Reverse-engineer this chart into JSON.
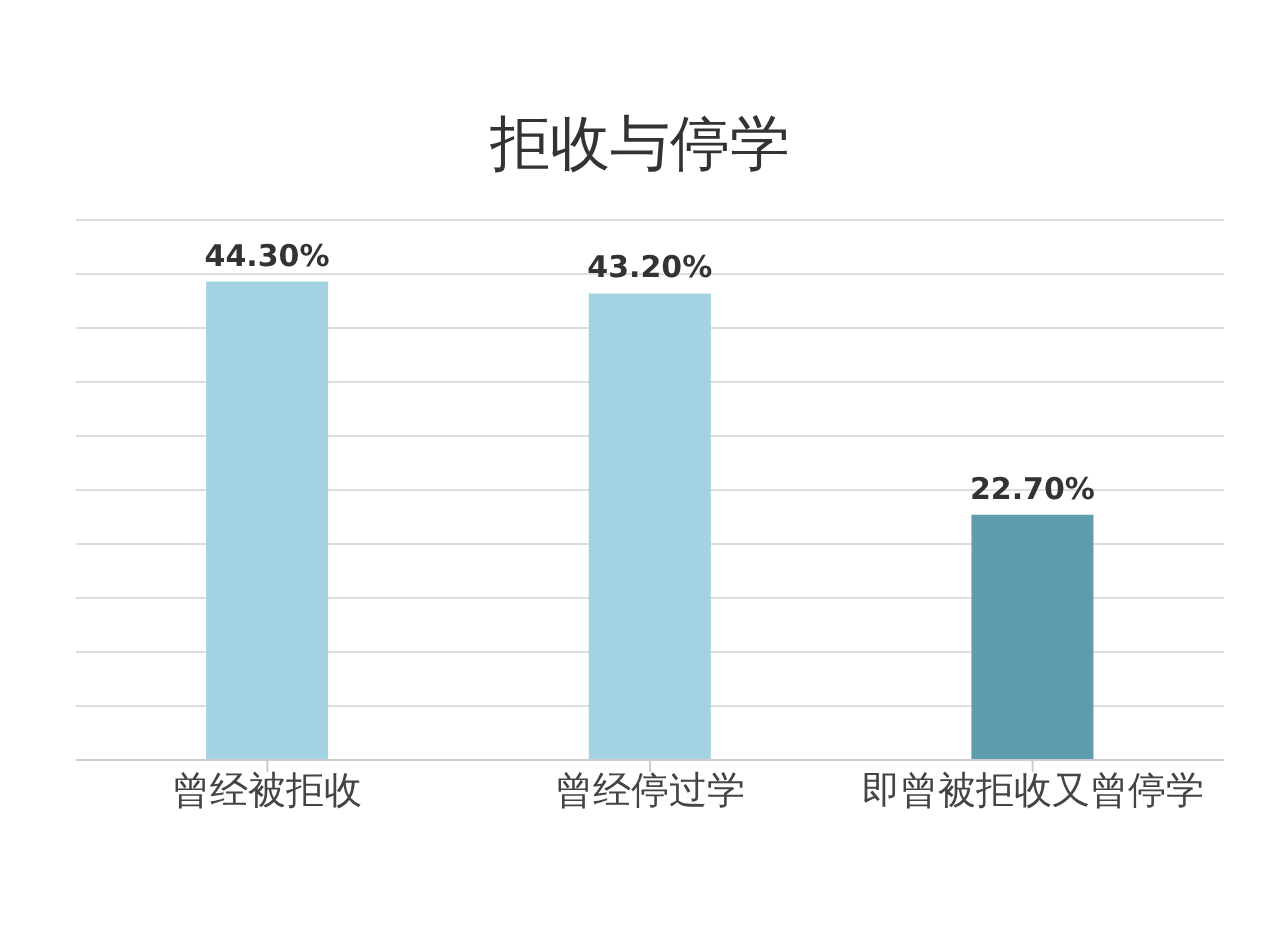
{
  "chart_data": {
    "type": "bar",
    "title": "拒收与停学",
    "categories": [
      "曾经被拒收",
      "曾经停过学",
      "即曾被拒收又曾停学"
    ],
    "values": [
      44.3,
      43.2,
      22.7
    ],
    "value_labels": [
      "44.30%",
      "43.20%",
      "22.70%"
    ],
    "colors": [
      "#a3d3e2",
      "#a3d3e2",
      "#5f9cae"
    ],
    "ylim": [
      0,
      50
    ],
    "tick_labels": "x",
    "grid": "y"
  }
}
